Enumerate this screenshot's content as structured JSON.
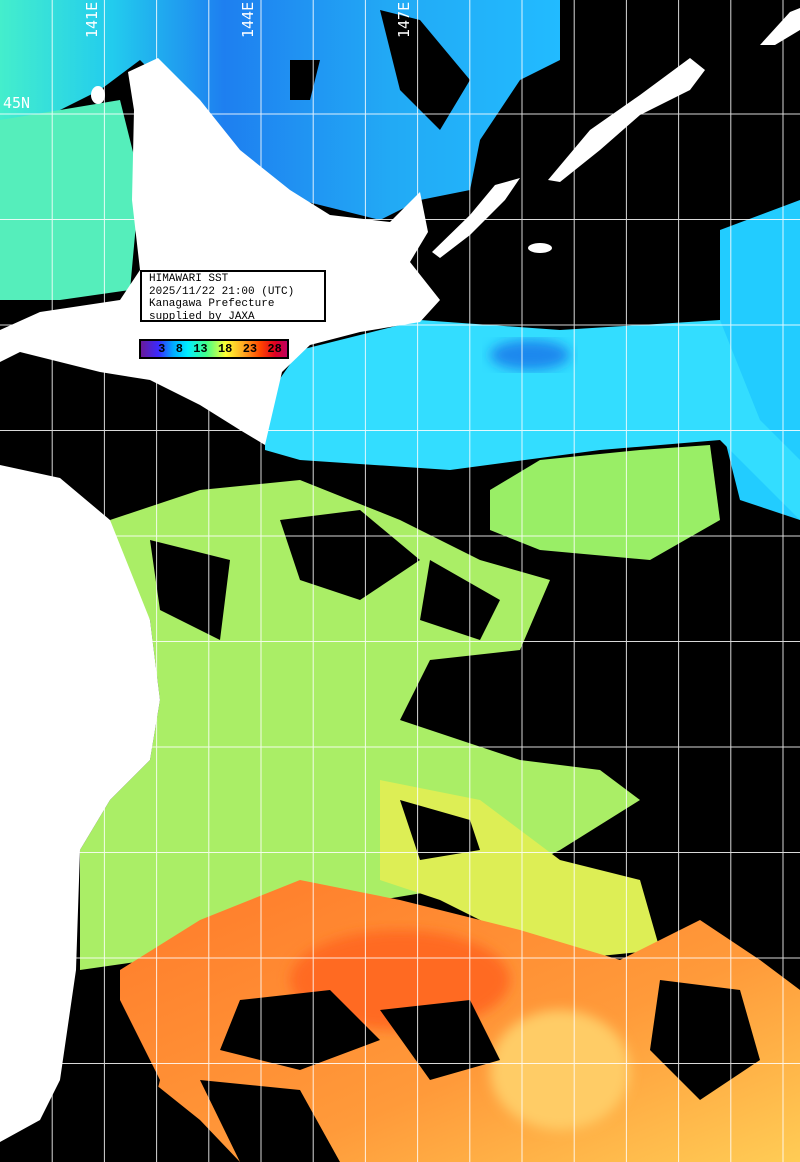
{
  "info_box": {
    "lines": [
      "HIMAWARI SST",
      "2025/11/22 21:00 (UTC)",
      "Kanagawa Prefecture",
      "supplied by JAXA"
    ]
  },
  "legend": {
    "ticks": [
      "3",
      "8",
      "13",
      "18",
      "23",
      "28"
    ],
    "colorscale": [
      "#6a1a9a",
      "#3a2aff",
      "#00aaff",
      "#00eeff",
      "#44ff88",
      "#ffff33",
      "#ffaa22",
      "#ff4400",
      "#dd0022",
      "#c00060"
    ]
  },
  "grid_labels": {
    "longitudes": [
      "141E",
      "144E",
      "147E"
    ],
    "latitudes": [
      "45N"
    ]
  },
  "colors": {
    "land": "#ffffff",
    "no_data": "#000000",
    "grid": "#ffffff"
  }
}
